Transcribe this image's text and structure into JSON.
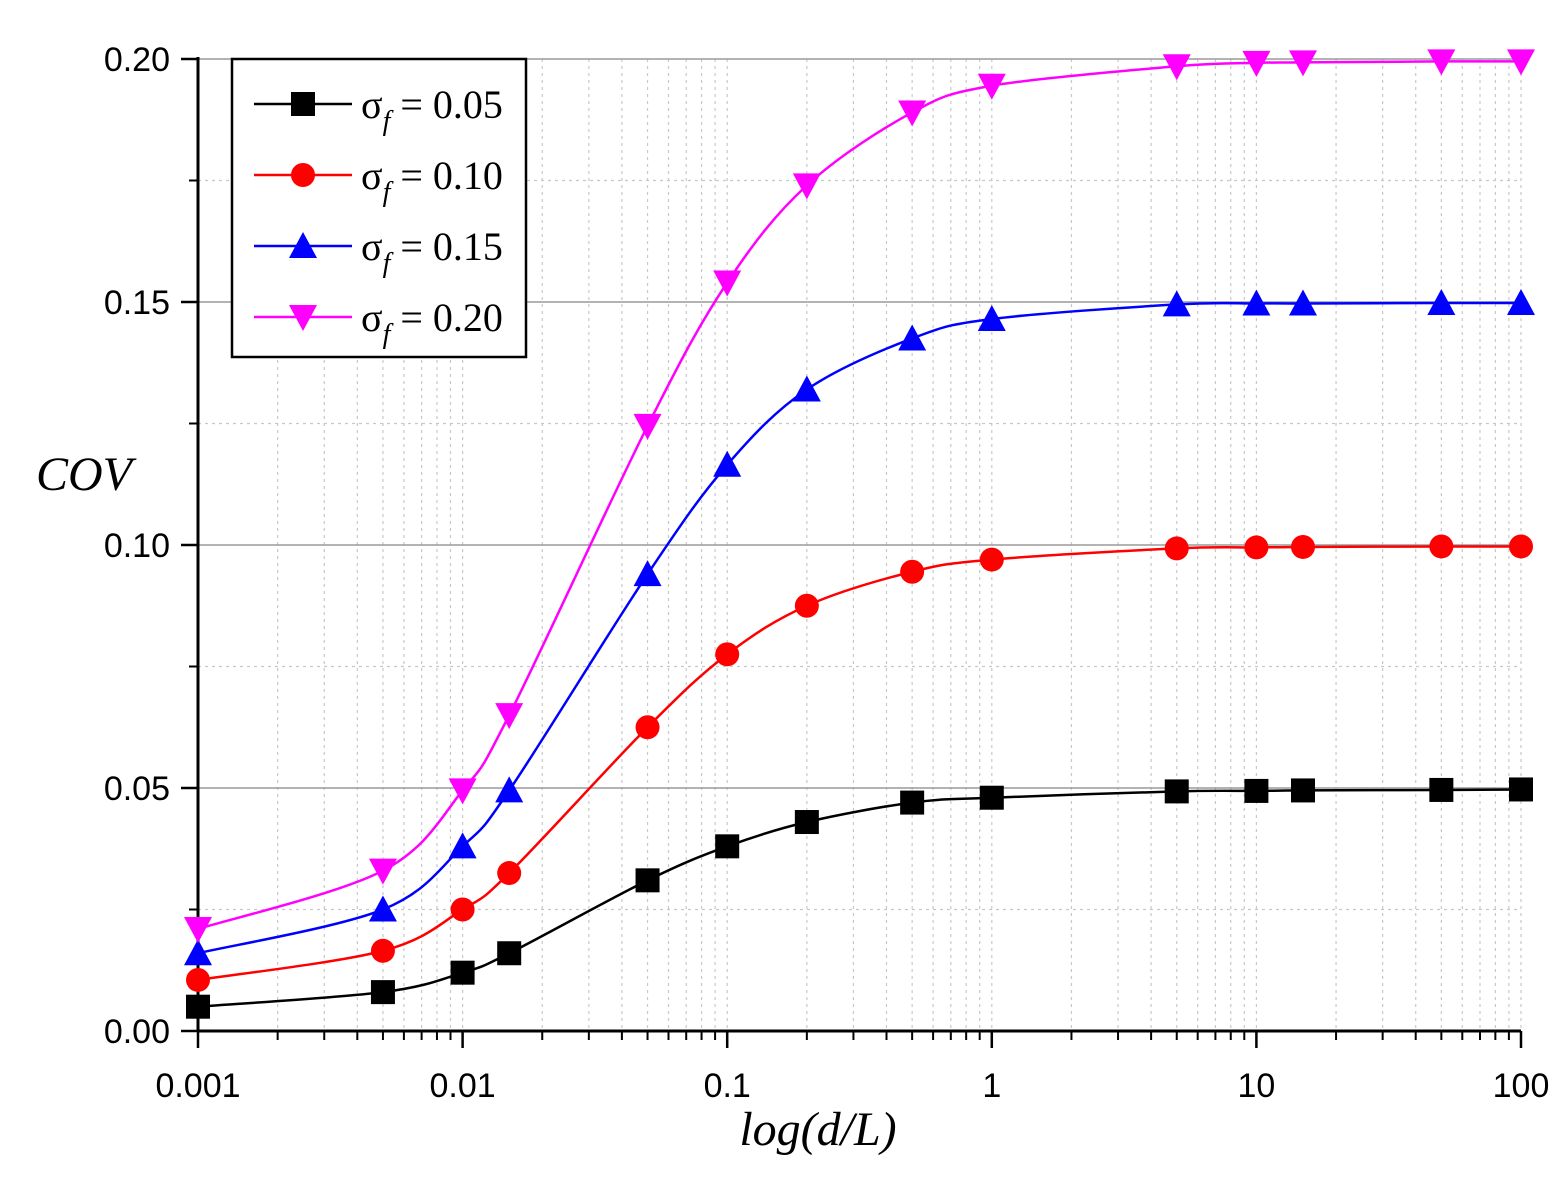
{
  "chart_data": {
    "type": "line",
    "title": "",
    "xlabel": "log(d/L)",
    "ylabel": "COV",
    "xscale": "log",
    "xlim": [
      0.001,
      100
    ],
    "ylim": [
      0.0,
      0.2
    ],
    "x_tick_labels": [
      "0.001",
      "0.01",
      "0.1",
      "1",
      "10",
      "100"
    ],
    "x_tick_values": [
      0.001,
      0.01,
      0.1,
      1,
      10,
      100
    ],
    "y_tick_labels": [
      "0.00",
      "0.05",
      "0.10",
      "0.15",
      "0.20"
    ],
    "y_tick_values": [
      0.0,
      0.05,
      0.1,
      0.15,
      0.2
    ],
    "grid": true,
    "legend_position": "top-left",
    "x": [
      0.001,
      0.005,
      0.01,
      0.015,
      0.05,
      0.1,
      0.2,
      0.5,
      1,
      5,
      10,
      15,
      50,
      100
    ],
    "series": [
      {
        "name_symbol": "σ",
        "name_sub": "f",
        "name_value": " = 0.05",
        "color": "#000000",
        "marker": "square",
        "values": [
          0.005,
          0.008,
          0.012,
          0.016,
          0.031,
          0.038,
          0.043,
          0.047,
          0.048,
          0.0493,
          0.0494,
          0.0495,
          0.0496,
          0.0497
        ]
      },
      {
        "name_symbol": "σ",
        "name_sub": "f",
        "name_value": " = 0.10",
        "color": "#ff0000",
        "marker": "circle",
        "values": [
          0.0105,
          0.0165,
          0.025,
          0.0325,
          0.0625,
          0.0775,
          0.0875,
          0.0945,
          0.097,
          0.0993,
          0.0995,
          0.0996,
          0.0997,
          0.0997
        ]
      },
      {
        "name_symbol": "σ",
        "name_sub": "f",
        "name_value": " = 0.15",
        "color": "#0000ff",
        "marker": "triangle-up",
        "values": [
          0.016,
          0.025,
          0.038,
          0.0495,
          0.094,
          0.1165,
          0.132,
          0.1425,
          0.1465,
          0.1495,
          0.1497,
          0.1497,
          0.1498,
          0.1498
        ]
      },
      {
        "name_symbol": "σ",
        "name_sub": "f",
        "name_value": " = 0.20",
        "color": "#ff00ff",
        "marker": "triangle-down",
        "values": [
          0.021,
          0.033,
          0.0495,
          0.065,
          0.1245,
          0.154,
          0.174,
          0.189,
          0.1945,
          0.1985,
          0.1992,
          0.1993,
          0.1995,
          0.1995
        ]
      }
    ]
  }
}
